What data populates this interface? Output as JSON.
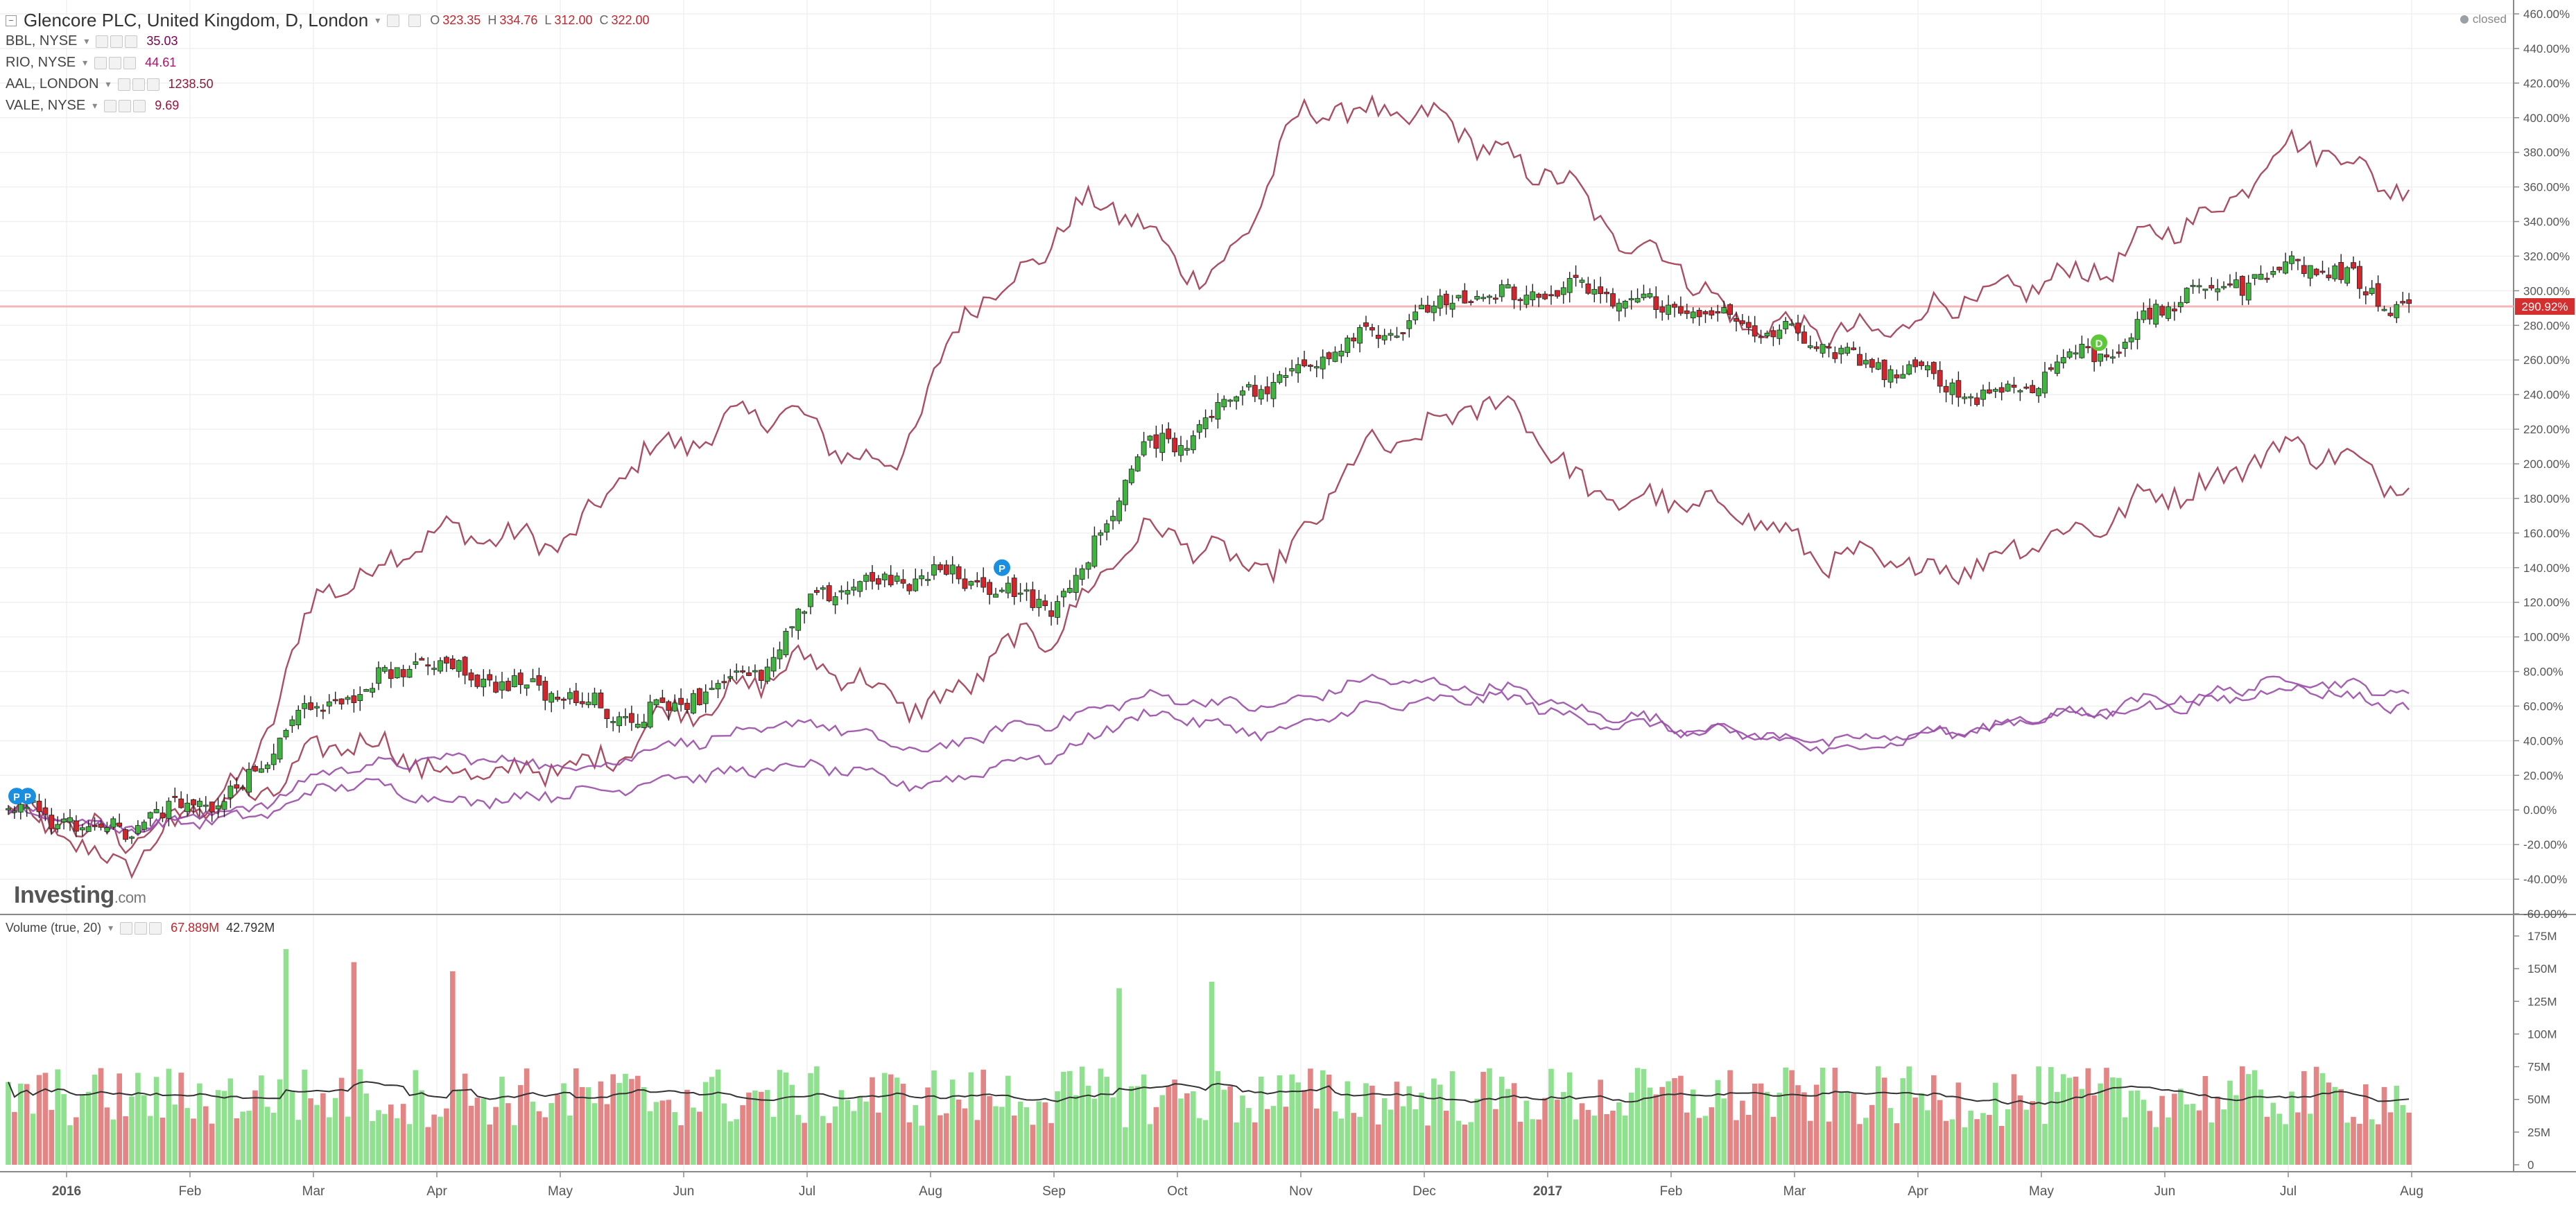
{
  "header": {
    "title": "Glencore PLC, United Kingdom, D, London",
    "open_label": "O",
    "open": "323.35",
    "high_label": "H",
    "high": "334.76",
    "low_label": "L",
    "low": "312.00",
    "close_label": "C",
    "close": "322.00",
    "status": "closed"
  },
  "comparisons": [
    {
      "symbol": "BBL, NYSE",
      "value": "35.03",
      "color": "#7a0050"
    },
    {
      "symbol": "RIO, NYSE",
      "value": "44.61",
      "color": "#b0126a"
    },
    {
      "symbol": "AAL, LONDON",
      "value": "1238.50",
      "color": "#8b1a3a"
    },
    {
      "symbol": "VALE, NYSE",
      "value": "9.69",
      "color": "#9b1240"
    }
  ],
  "volume_header": {
    "label": "Volume (true, 20)",
    "value1": "67.889M",
    "value2": "42.792M"
  },
  "brand": {
    "name": "Investing",
    "suffix": ".com"
  },
  "colors": {
    "up": "#3fb43f",
    "down": "#d0262c",
    "vol_up": "#8fe08f",
    "vol_down": "#e48585",
    "compare_red": "#a13b52",
    "compare_purple": "#9a4ea8",
    "price_line": "#f2b7b7",
    "markers": "#1a8fe0",
    "dividend": "#5cc83a"
  },
  "chart_data": [
    {
      "type": "line",
      "title": "Glencore PLC, United Kingdom, D, London",
      "y_axis": {
        "unit": "%",
        "range": [
          -60,
          460
        ],
        "ticks": [
          "460.00%",
          "440.00%",
          "420.00%",
          "400.00%",
          "380.00%",
          "360.00%",
          "340.00%",
          "320.00%",
          "300.00%",
          "280.00%",
          "260.00%",
          "240.00%",
          "220.00%",
          "200.00%",
          "180.00%",
          "160.00%",
          "140.00%",
          "120.00%",
          "100.00%",
          "80.00%",
          "60.00%",
          "40.00%",
          "20.00%",
          "0.00%",
          "-20.00%",
          "-40.00%",
          "-60.00%"
        ]
      },
      "x_axis": {
        "ticks": [
          "2016",
          "Feb",
          "Mar",
          "Apr",
          "May",
          "Jun",
          "Jul",
          "Aug",
          "Sep",
          "Oct",
          "Nov",
          "Dec",
          "2017",
          "Feb",
          "Mar",
          "Apr",
          "May",
          "Jun",
          "Jul",
          "Aug"
        ]
      },
      "current_label": "290.92%",
      "current_value": 290.92,
      "x_key_months": [
        0,
        1,
        2,
        3,
        4,
        5,
        6,
        7,
        8,
        9,
        10,
        11,
        12,
        13,
        14,
        15,
        16,
        17,
        18,
        19,
        19.45
      ],
      "series": [
        {
          "style": "candles",
          "values": [
            0,
            -10,
            5,
            60,
            85,
            70,
            55,
            75,
            130,
            135,
            120,
            210,
            245,
            275,
            295,
            300,
            290,
            275,
            255,
            240,
            265,
            300,
            315,
            292
          ]
        },
        {
          "values": [
            0,
            -30,
            10,
            130,
            160,
            155,
            210,
            230,
            200,
            300,
            350,
            310,
            405,
            400,
            370,
            325,
            280,
            275,
            295,
            310,
            340,
            385,
            360
          ]
        },
        {
          "values": [
            0,
            -15,
            5,
            40,
            20,
            25,
            60,
            85,
            60,
            100,
            160,
            140,
            210,
            235,
            180,
            175,
            145,
            140,
            160,
            185,
            210,
            190
          ]
        },
        {
          "values": [
            0,
            -10,
            0,
            25,
            30,
            25,
            40,
            50,
            35,
            50,
            65,
            60,
            75,
            70,
            55,
            45,
            40,
            45,
            55,
            65,
            75,
            68
          ]
        },
        {
          "values": [
            0,
            -10,
            -5,
            15,
            5,
            10,
            20,
            25,
            15,
            30,
            55,
            45,
            60,
            65,
            50,
            45,
            35,
            45,
            55,
            60,
            70,
            60
          ]
        }
      ]
    },
    {
      "type": "bar",
      "title": "Volume (true, 20)",
      "y_axis": {
        "ticks": [
          "175M",
          "150M",
          "125M",
          "100M",
          "75M",
          "50M",
          "25M",
          "0"
        ],
        "range": [
          0,
          175
        ]
      },
      "series": [
        {
          "name": "Volume (true, 20)",
          "style": "bars",
          "mean_millions": 52,
          "spikes_millions": [
            165,
            155,
            148,
            135,
            140
          ]
        },
        {
          "name": "MA",
          "style": "line",
          "range_millions": [
            40,
            95
          ]
        }
      ]
    }
  ]
}
